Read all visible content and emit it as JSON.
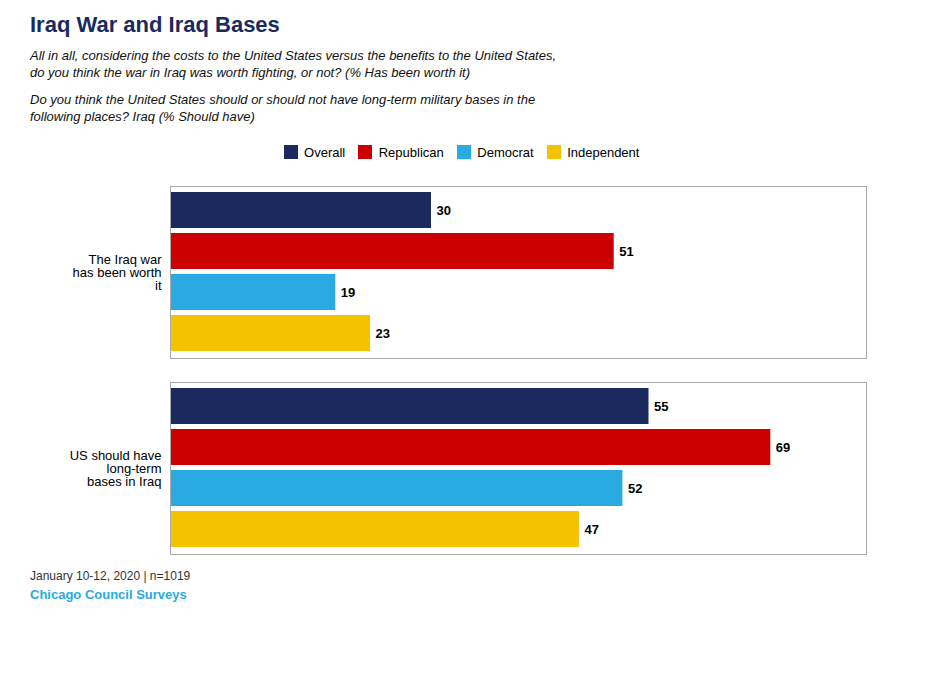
{
  "chart_data": {
    "type": "bar",
    "orientation": "horizontal",
    "title": "Iraq War and Iraq Bases",
    "subtitle": [
      "All in all, considering the costs to the United States versus the benefits to the United States,\ndo you think the war in Iraq was worth fighting, or not? (% Has been worth it)",
      "Do you think the United States should or should not have long-term military bases in the\nfollowing places? Iraq (% Should have)"
    ],
    "annotations": [
      "January 10-12, 2020 | n=1019",
      "Chicago Council Surveys"
    ],
    "categories": [
      "The Iraq war\nhas been worth\nit",
      "US should have\nlong-term\nbases in Iraq"
    ],
    "series": [
      {
        "name": "Overall",
        "color": "#1a2a5e",
        "values": [
          30,
          55
        ]
      },
      {
        "name": "Republican",
        "color": "#cc0000",
        "values": [
          51,
          69
        ]
      },
      {
        "name": "Democrat",
        "color": "#29abe2",
        "values": [
          19,
          52
        ]
      },
      {
        "name": "Independent",
        "color": "#f5c200",
        "values": [
          23,
          47
        ]
      }
    ],
    "xlim": [
      0,
      80
    ],
    "tick_labels": false,
    "grid": false,
    "legend": "top",
    "data_labels": true
  }
}
